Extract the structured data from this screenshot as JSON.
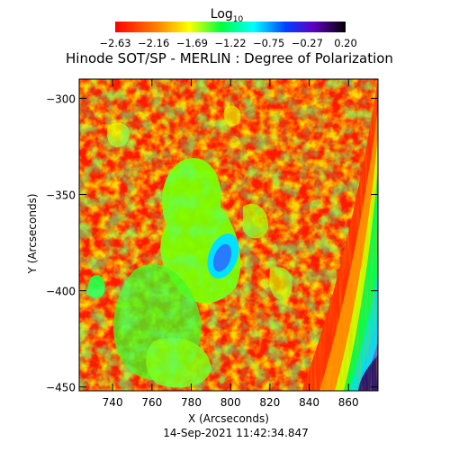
{
  "chart_data": {
    "type": "heatmap",
    "title": "Hinode SOT/SP - MERLIN : Degree of Polarization",
    "xlabel": "X (Arcseconds)",
    "ylabel": "Y (Arcseconds)",
    "footer": "14-Sep-2021 11:42:34.847",
    "colorbar": {
      "title_base": "Log",
      "title_sub": "10",
      "ticks": [
        "-2.63",
        "-2.16",
        "-1.69",
        "-1.22",
        "-0.75",
        "-0.27",
        "0.20"
      ],
      "range": [
        -2.63,
        0.2
      ],
      "colormap": "rainbow: red (low) - yellow - green - cyan - blue - purple - black (high)"
    },
    "x_ticks": [
      740,
      760,
      780,
      800,
      820,
      840,
      860
    ],
    "y_ticks": [
      -300,
      -350,
      -400,
      -450
    ],
    "x_tick_labels": [
      "740",
      "760",
      "780",
      "800",
      "820",
      "840",
      "860"
    ],
    "y_tick_labels": [
      "-300",
      "-350",
      "-400",
      "-450"
    ],
    "xlim": [
      723,
      875
    ],
    "ylim": [
      -452,
      -290
    ],
    "colors": {
      "red": "#ff1a00",
      "orange": "#ff7a00",
      "yellow": "#e6ff00",
      "green": "#00ff3c",
      "cyan": "#00f0ff",
      "blue": "#1e50ff",
      "purple": "#281468",
      "black": "#000000"
    }
  }
}
